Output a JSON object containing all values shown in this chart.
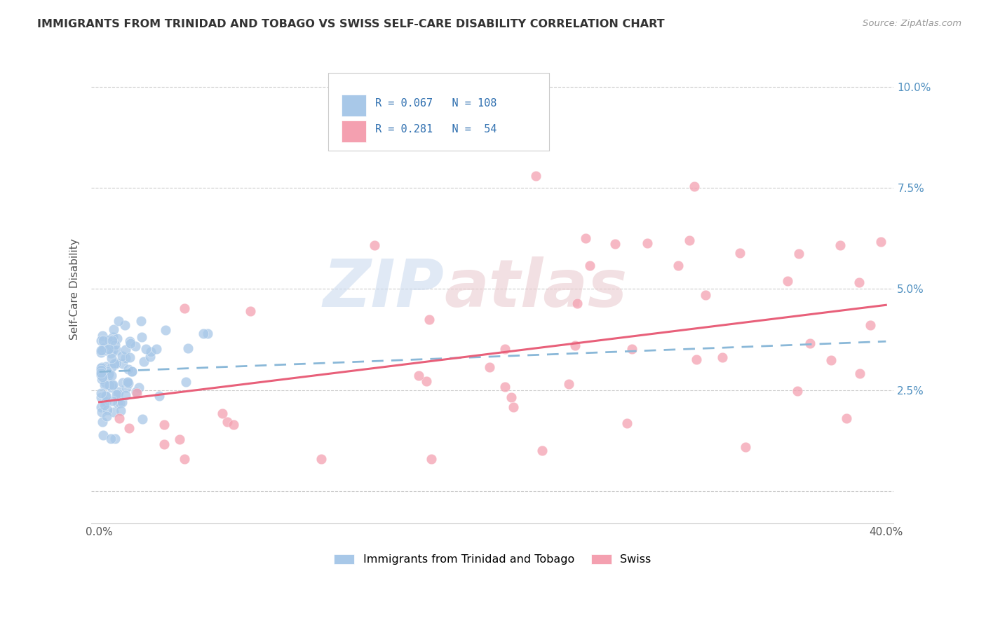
{
  "title": "IMMIGRANTS FROM TRINIDAD AND TOBAGO VS SWISS SELF-CARE DISABILITY CORRELATION CHART",
  "source": "Source: ZipAtlas.com",
  "ylabel": "Self-Care Disability",
  "xlim": [
    0.0,
    0.4
  ],
  "ylim": [
    -0.008,
    0.108
  ],
  "color_blue": "#a8c8e8",
  "color_pink": "#f4a0b0",
  "color_blue_line": "#8ab8d8",
  "color_pink_line": "#e8607a",
  "watermark_color": "#d0dce8",
  "watermark_color2": "#e8c0c8",
  "blue_line_x0": 0.0,
  "blue_line_x1": 0.4,
  "blue_line_y0": 0.0295,
  "blue_line_y1": 0.037,
  "pink_line_x0": 0.0,
  "pink_line_x1": 0.4,
  "pink_line_y0": 0.022,
  "pink_line_y1": 0.046,
  "legend_r1": "R = 0.067",
  "legend_n1": "N = 108",
  "legend_r2": "R = 0.281",
  "legend_n2": "N =  54",
  "legend_text_color": "#3070b0",
  "title_color": "#333333",
  "source_color": "#999999",
  "ylabel_color": "#555555",
  "ytick_color": "#5090c0",
  "xtick_color": "#555555",
  "grid_color": "#cccccc",
  "bottom_legend_label1": "Immigrants from Trinidad and Tobago",
  "bottom_legend_label2": "Swiss"
}
